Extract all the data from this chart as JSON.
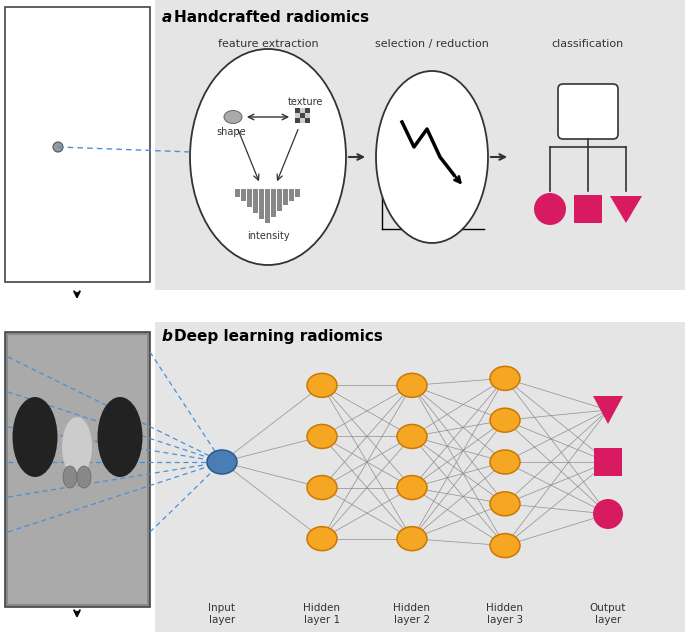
{
  "title_a": "Handcrafted radiomics",
  "title_b": "Deep learning radiomics",
  "label_a": "a",
  "label_b": "b",
  "bg_color": "#e5e5e5",
  "white": "#ffffff",
  "orange_node": "#F5A623",
  "blue_node": "#4A7DB5",
  "pink_color": "#D81B60",
  "gray_color": "#888888",
  "dark_gray": "#555555",
  "feature_extraction_label": "feature extraction",
  "selection_reduction_label": "selection / reduction",
  "classification_label": "classification",
  "shape_label": "shape",
  "texture_label": "texture",
  "intensity_label": "intensity",
  "layer_labels": [
    "Input\nlayer",
    "Hidden\nlayer 1",
    "Hidden\nlayer 2",
    "Hidden\nlayer 3",
    "Output\nlayer"
  ],
  "bar_heights": [
    8,
    12,
    18,
    24,
    30,
    34,
    28,
    22,
    16,
    12,
    8
  ],
  "arrow_color": "#333333",
  "blue_dash_color": "#4A90D9"
}
